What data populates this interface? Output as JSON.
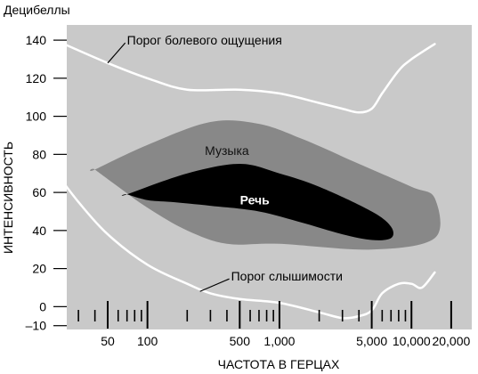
{
  "chart_data": {
    "type": "area",
    "unit_label": "Децибеллы",
    "xlabel": "ЧАСТОТА В ГЕРЦАХ",
    "ylabel": "ИНТЕНСИВНОСТЬ",
    "x_scale": "log",
    "xlim": [
      20,
      30000
    ],
    "ylim": [
      -12,
      148
    ],
    "y_ticks": [
      140,
      120,
      100,
      80,
      60,
      40,
      20,
      0,
      -10
    ],
    "x_ticks_labeled": [
      {
        "value": 50,
        "label": "50"
      },
      {
        "value": 100,
        "label": "100"
      },
      {
        "value": 500,
        "label": "500"
      },
      {
        "value": 1000,
        "label": "1,000"
      },
      {
        "value": 5000,
        "label": "5,000"
      },
      {
        "value": 10000,
        "label": "10,000"
      },
      {
        "value": 20000,
        "label": "20,000"
      }
    ],
    "x_ticks_minor": [
      30,
      40,
      60,
      70,
      80,
      90,
      200,
      300,
      400,
      600,
      700,
      800,
      900,
      2000,
      3000,
      4000,
      6000,
      7000,
      8000,
      9000
    ],
    "grid": false,
    "background_color": "#c9c9c9",
    "series": [
      {
        "name": "Порог болевого ощущения",
        "kind": "line",
        "color": "#ffffff",
        "x": [
          20,
          50,
          100,
          200,
          500,
          1000,
          2000,
          3000,
          4000,
          5000,
          6000,
          8000,
          10000,
          15000
        ],
        "y": [
          140,
          128,
          120,
          114,
          114,
          112,
          107,
          104,
          102,
          104,
          112,
          124,
          130,
          138
        ]
      },
      {
        "name": "Порог слышимости",
        "kind": "line",
        "color": "#ffffff",
        "x": [
          20,
          30,
          50,
          100,
          200,
          300,
          500,
          1000,
          2000,
          3000,
          4000,
          5000,
          6000,
          8000,
          10000,
          12000,
          15000
        ],
        "y": [
          71,
          55,
          38,
          22,
          12,
          7,
          4,
          2,
          -3,
          -6,
          -5,
          -2,
          7,
          12,
          12,
          10,
          18
        ]
      },
      {
        "name": "Музыка",
        "kind": "region",
        "color": "#888888",
        "x": [
          40,
          100,
          300,
          700,
          1500,
          4000,
          10000,
          15000,
          15000,
          5000,
          1000,
          400,
          200,
          100,
          60,
          40
        ],
        "y": [
          72,
          85,
          97,
          96,
          88,
          75,
          63,
          57,
          36,
          30,
          33,
          33,
          40,
          52,
          63,
          72
        ]
      },
      {
        "name": "Речь",
        "kind": "region",
        "color": "#000000",
        "x": [
          70,
          200,
          500,
          1000,
          2000,
          5000,
          7000,
          7000,
          5000,
          3000,
          1500,
          700,
          300,
          150,
          100,
          70
        ],
        "y": [
          59,
          70,
          75,
          70,
          63,
          50,
          42,
          36,
          35,
          38,
          44,
          50,
          53,
          55,
          56,
          59
        ]
      }
    ],
    "annotations": [
      {
        "text": "Порог болевого ощущения",
        "series": "Порог болевого ощущения",
        "at_x": 50,
        "at_y": 128,
        "text_x": 70,
        "text_y": 140
      },
      {
        "text": "Музыка",
        "series": "Музыка",
        "text_x": 400,
        "text_y": 82
      },
      {
        "text": "Речь",
        "series": "Речь",
        "text_x": 650,
        "text_y": 56
      },
      {
        "text": "Порог слышимости",
        "series": "Порог слышимости",
        "at_x": 250,
        "at_y": 8,
        "text_x": 430,
        "text_y": 16
      }
    ]
  }
}
